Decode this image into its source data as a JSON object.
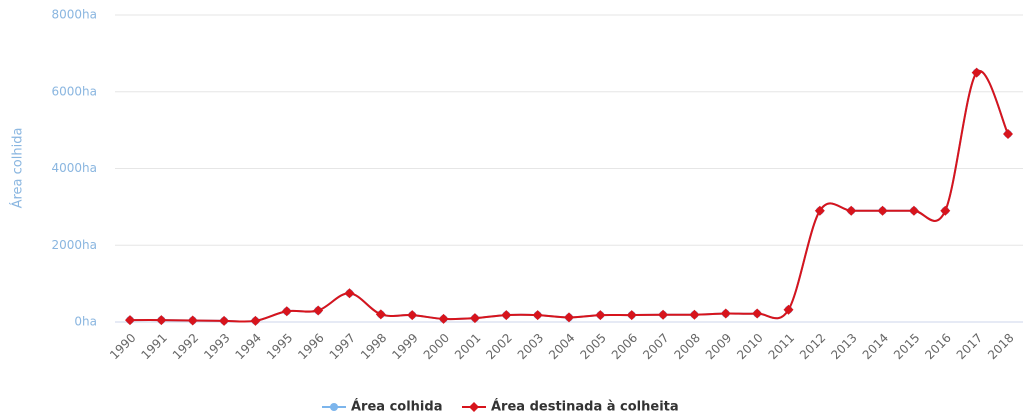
{
  "chart_data": {
    "type": "line",
    "y_axis_label": "Área colhida",
    "categories": [
      "1990",
      "1991",
      "1992",
      "1993",
      "1994",
      "1995",
      "1996",
      "1997",
      "1998",
      "1999",
      "2000",
      "2001",
      "2002",
      "2003",
      "2004",
      "2005",
      "2006",
      "2007",
      "2008",
      "2009",
      "2010",
      "2011",
      "2012",
      "2013",
      "2014",
      "2015",
      "2016",
      "2017",
      "2018"
    ],
    "series": [
      {
        "name": "Área colhida",
        "color": "#7cb5ec",
        "values": [
          50,
          50,
          40,
          30,
          30,
          280,
          300,
          750,
          200,
          180,
          80,
          100,
          180,
          180,
          120,
          180,
          180,
          190,
          190,
          220,
          220,
          320,
          2900,
          2900,
          2900,
          2900,
          2900,
          6500,
          4900
        ]
      },
      {
        "name": "Área destinada à colheita",
        "color": "#d7141c",
        "values": [
          50,
          50,
          40,
          30,
          30,
          280,
          300,
          750,
          200,
          180,
          80,
          100,
          180,
          180,
          120,
          180,
          180,
          190,
          190,
          220,
          220,
          320,
          2900,
          2900,
          2900,
          2900,
          2900,
          6500,
          4900
        ]
      }
    ],
    "ylim": [
      0,
      8000
    ],
    "yticks": [
      {
        "value": 0,
        "label": "0ha"
      },
      {
        "value": 2000,
        "label": "2000ha"
      },
      {
        "value": 4000,
        "label": "4000ha"
      },
      {
        "value": 6000,
        "label": "6000ha"
      },
      {
        "value": 8000,
        "label": "8000ha"
      }
    ],
    "grid": true
  }
}
